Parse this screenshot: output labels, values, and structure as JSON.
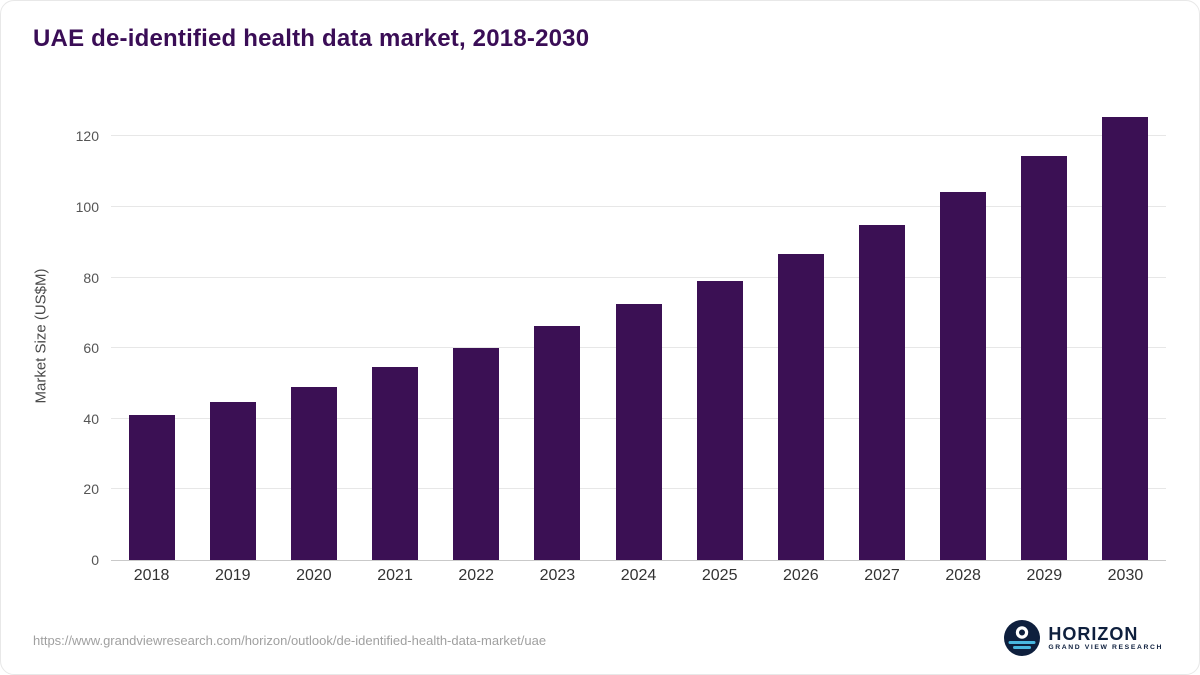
{
  "title": "UAE de-identified health data market, 2018-2030",
  "footer": {
    "source_url": "https://www.grandviewresearch.com/horizon/outlook/de-identified-health-data-market/uae",
    "logo_primary": "HORIZON",
    "logo_secondary": "GRAND VIEW RESEARCH"
  },
  "colors": {
    "bar": "#3b1054",
    "title": "#3a0d56",
    "grid": "#e7e7e7",
    "axis_line": "#c9c9c9",
    "axis_text": "#555555",
    "footer_text": "#a0a0a0",
    "logo_navy": "#0e1f3d",
    "logo_teal": "#49b8e0"
  },
  "chart_data": {
    "type": "bar",
    "title": "UAE de-identified health data market, 2018-2030",
    "categories": [
      "2018",
      "2019",
      "2020",
      "2021",
      "2022",
      "2023",
      "2024",
      "2025",
      "2026",
      "2027",
      "2028",
      "2029",
      "2030"
    ],
    "values": [
      41,
      44.7,
      49,
      54.7,
      60,
      66.3,
      72.4,
      79,
      86.6,
      95,
      104.2,
      114.3,
      125.6
    ],
    "xlabel": "",
    "ylabel": "Market Size (US$M)",
    "ylim": [
      0,
      130
    ],
    "yticks": [
      0,
      20,
      40,
      60,
      80,
      100,
      120
    ],
    "grid": true,
    "legend": false
  }
}
